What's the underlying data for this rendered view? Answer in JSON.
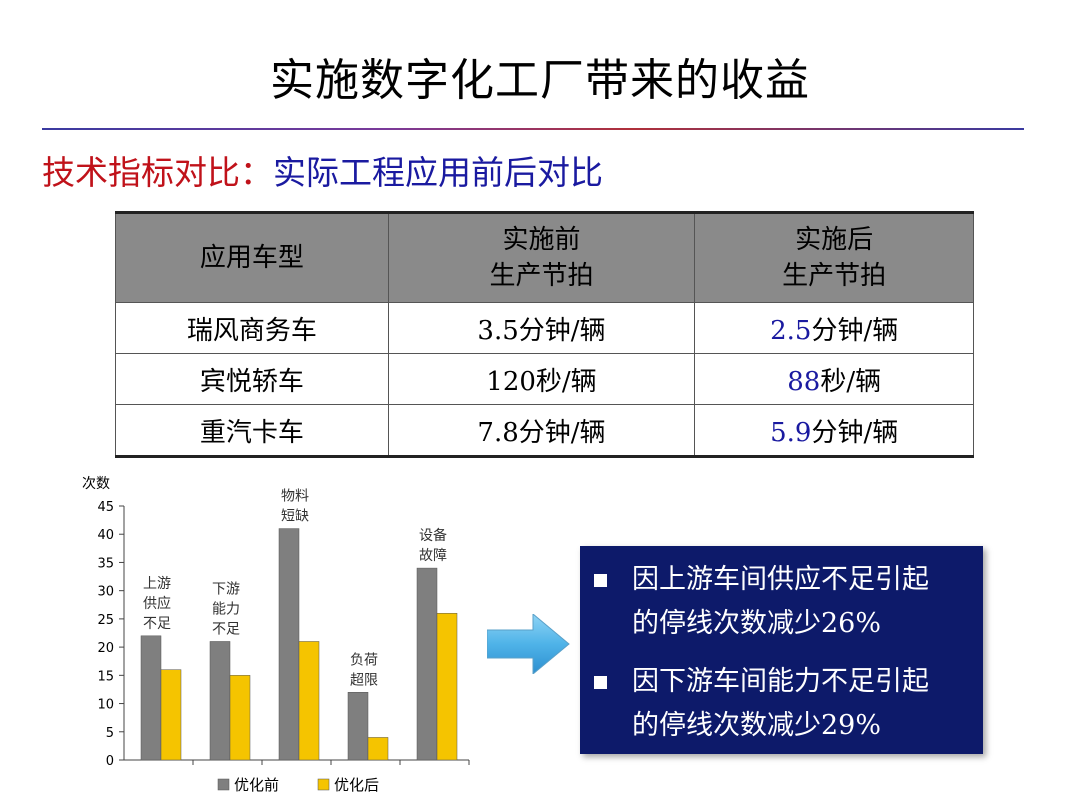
{
  "slide": {
    "title": "实施数字化工厂带来的收益",
    "subtitle_prefix": "技术指标对比：",
    "subtitle_rest": "实际工程应用前后对比"
  },
  "table": {
    "headers": {
      "col1": "应用车型",
      "col2_line1": "实施前",
      "col2_line2": "生产节拍",
      "col3_line1": "实施后",
      "col3_line2": "生产节拍"
    },
    "rows": [
      {
        "model": "瑞风商务车",
        "before": "3.5分钟/辆",
        "after_num": "2.5",
        "after_unit": "分钟/辆"
      },
      {
        "model": "宾悦轿车",
        "before": "120秒/辆",
        "after_num": "88",
        "after_unit": "秒/辆"
      },
      {
        "model": "重汽卡车",
        "before": "7.8分钟/辆",
        "after_num": "5.9",
        "after_unit": "分钟/辆"
      }
    ]
  },
  "chart_data": {
    "type": "bar",
    "ylabel": "次数",
    "ylim": [
      0,
      45
    ],
    "yticks": [
      0,
      5,
      10,
      15,
      20,
      25,
      30,
      35,
      40,
      45
    ],
    "categories": [
      [
        "上游",
        "供应",
        "不足"
      ],
      [
        "下游",
        "能力",
        "不足"
      ],
      [
        "物料",
        "短缺"
      ],
      [
        "负荷",
        "超限"
      ],
      [
        "设备",
        "故障"
      ]
    ],
    "series": [
      {
        "name": "优化前",
        "color": "#7f7f7f",
        "values": [
          22,
          21,
          41,
          12,
          34
        ]
      },
      {
        "name": "优化后",
        "color": "#f5c400",
        "values": [
          16,
          15,
          21,
          4,
          26
        ]
      }
    ],
    "legend_position": "bottom",
    "grid": false
  },
  "summary": {
    "items": [
      {
        "line1": "因上游车间供应不足引起",
        "line2": "的停线次数减少26%"
      },
      {
        "line1": "因下游车间能力不足引起",
        "line2": "的停线次数减少29%"
      }
    ]
  },
  "colors": {
    "subtitle_red": "#c0121a",
    "subtitle_blue": "#1a1aa0",
    "header_gray": "#8a8a8a",
    "summary_bg": "#0d1a6a",
    "arrow": "#4fb3e8"
  }
}
